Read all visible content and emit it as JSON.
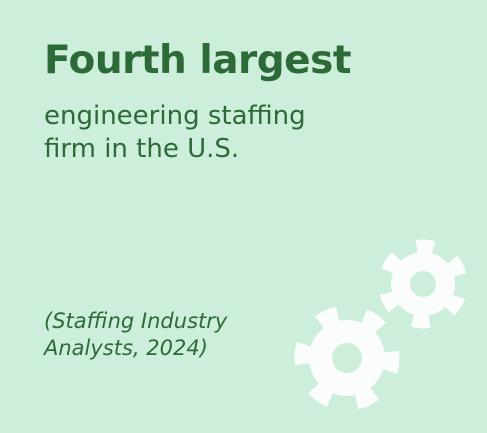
{
  "card": {
    "title": "Fourth largest",
    "subtitle_lines": [
      "engineering staffing",
      "firm in the U.S."
    ],
    "source_lines": [
      "(Staffing Industry",
      "Analysts, 2024)"
    ]
  }
}
